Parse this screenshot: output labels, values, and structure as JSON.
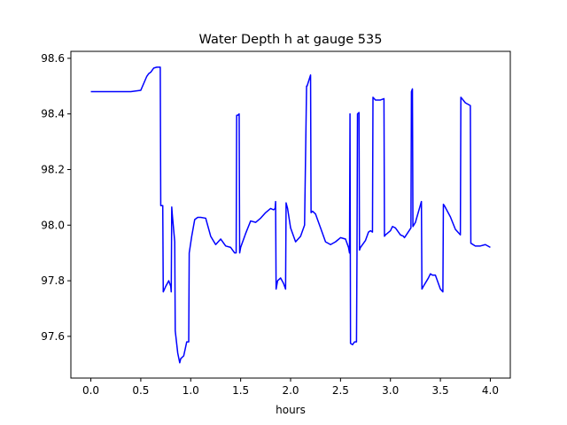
{
  "chart_data": {
    "type": "line",
    "title": "Water Depth h at gauge 535",
    "xlabel": "hours",
    "ylabel": "",
    "xlim": [
      -0.2,
      4.2
    ],
    "ylim": [
      97.45,
      98.625
    ],
    "xticks": [
      0.0,
      0.5,
      1.0,
      1.5,
      2.0,
      2.5,
      3.0,
      3.5,
      4.0
    ],
    "xtick_labels": [
      "0.0",
      "0.5",
      "1.0",
      "1.5",
      "2.0",
      "2.5",
      "3.0",
      "3.5",
      "4.0"
    ],
    "yticks": [
      97.6,
      97.8,
      98.0,
      98.2,
      98.4,
      98.6
    ],
    "ytick_labels": [
      "97.6",
      "97.8",
      "98.0",
      "98.2",
      "98.4",
      "98.6"
    ],
    "grid": false,
    "legend": "none",
    "series": [
      {
        "color": "#0000ff",
        "x": [
          0.0,
          0.2,
          0.4,
          0.5,
          0.53,
          0.56,
          0.58,
          0.6,
          0.63,
          0.66,
          0.695,
          0.7,
          0.72,
          0.725,
          0.75,
          0.78,
          0.8,
          0.805,
          0.81,
          0.815,
          0.84,
          0.845,
          0.87,
          0.89,
          0.9,
          0.93,
          0.96,
          0.98,
          0.985,
          1.01,
          1.04,
          1.07,
          1.1,
          1.15,
          1.2,
          1.25,
          1.3,
          1.35,
          1.4,
          1.44,
          1.455,
          1.46,
          1.47,
          1.485,
          1.49,
          1.5,
          1.55,
          1.6,
          1.65,
          1.7,
          1.75,
          1.8,
          1.83,
          1.845,
          1.85,
          1.855,
          1.87,
          1.9,
          1.93,
          1.95,
          1.955,
          1.97,
          2.0,
          2.05,
          2.1,
          2.14,
          2.16,
          2.165,
          2.2,
          2.205,
          2.22,
          2.25,
          2.3,
          2.35,
          2.4,
          2.45,
          2.5,
          2.55,
          2.58,
          2.59,
          2.595,
          2.6,
          2.62,
          2.64,
          2.66,
          2.665,
          2.67,
          2.685,
          2.69,
          2.7,
          2.75,
          2.78,
          2.8,
          2.82,
          2.825,
          2.85,
          2.9,
          2.935,
          2.94,
          2.95,
          3.0,
          3.02,
          3.05,
          3.1,
          3.13,
          3.14,
          3.15,
          3.205,
          3.21,
          3.22,
          3.225,
          3.25,
          3.31,
          3.315,
          3.33,
          3.38,
          3.4,
          3.42,
          3.45,
          3.5,
          3.525,
          3.53,
          3.54,
          3.6,
          3.65,
          3.7,
          3.705,
          3.75,
          3.8,
          3.805,
          3.85,
          3.9,
          3.95,
          4.0
        ],
        "y": [
          98.48,
          98.48,
          98.48,
          98.485,
          98.51,
          98.535,
          98.545,
          98.55,
          98.565,
          98.568,
          98.568,
          98.07,
          98.07,
          97.76,
          97.78,
          97.8,
          97.78,
          97.76,
          98.065,
          98.04,
          97.94,
          97.62,
          97.54,
          97.505,
          97.52,
          97.53,
          97.58,
          97.58,
          97.9,
          97.96,
          98.02,
          98.028,
          98.028,
          98.025,
          97.96,
          97.93,
          97.95,
          97.925,
          97.92,
          97.9,
          97.9,
          98.395,
          98.395,
          98.4,
          97.9,
          97.92,
          97.97,
          98.015,
          98.01,
          98.025,
          98.045,
          98.06,
          98.055,
          98.06,
          98.085,
          97.77,
          97.8,
          97.81,
          97.79,
          97.77,
          98.08,
          98.06,
          97.99,
          97.94,
          97.96,
          98.0,
          98.5,
          98.5,
          98.54,
          98.045,
          98.05,
          98.04,
          97.99,
          97.94,
          97.93,
          97.94,
          97.955,
          97.95,
          97.92,
          97.9,
          98.4,
          97.575,
          97.57,
          97.58,
          97.58,
          97.9,
          98.4,
          98.405,
          97.91,
          97.92,
          97.945,
          97.975,
          97.98,
          97.975,
          98.46,
          98.45,
          98.45,
          98.455,
          97.96,
          97.965,
          97.98,
          97.995,
          97.99,
          97.965,
          97.96,
          97.955,
          97.96,
          97.99,
          98.48,
          98.49,
          97.995,
          98.01,
          98.085,
          97.77,
          97.78,
          97.81,
          97.825,
          97.82,
          97.82,
          97.77,
          97.76,
          98.075,
          98.07,
          98.03,
          97.985,
          97.965,
          98.46,
          98.44,
          98.43,
          97.935,
          97.925,
          97.925,
          97.93,
          97.92
        ]
      }
    ]
  }
}
